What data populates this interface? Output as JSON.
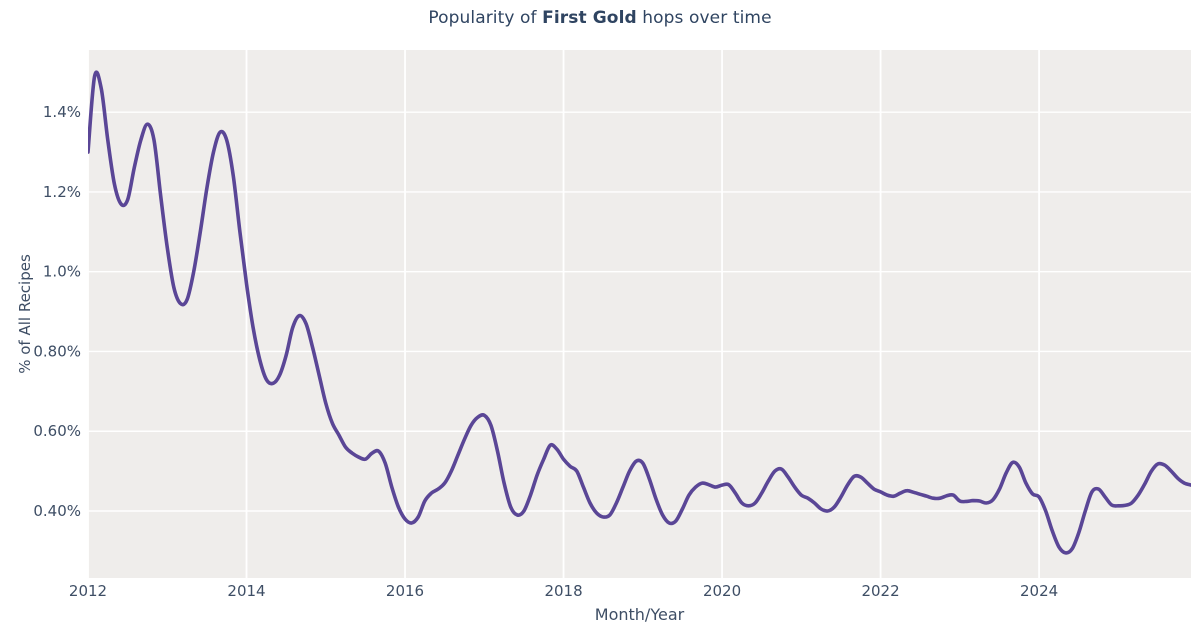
{
  "title": {
    "prefix": "Popularity of ",
    "hop": "First Gold",
    "suffix": " hops over time"
  },
  "colors": {
    "line": "#5a4696",
    "plot_bg": "#efedeb",
    "grid": "#ffffff",
    "title_text": "#2f4461",
    "tick_text": "#3e4e65"
  },
  "chart_data": {
    "type": "line",
    "title": "Popularity of First Gold hops over time",
    "xlabel": "Month/Year",
    "ylabel": "% of All Recipes",
    "grid": true,
    "legend": false,
    "frequency": "monthly",
    "x_start": "2012-01",
    "x_end": "2025-12",
    "unit": "% of all recipes",
    "xlim_years": [
      2012.0,
      2025.9167
    ],
    "ylim_percent": [
      0.232,
      1.556
    ],
    "x_ticks": [
      {
        "year": 2012,
        "label": "2012"
      },
      {
        "year": 2014,
        "label": "2014"
      },
      {
        "year": 2016,
        "label": "2016"
      },
      {
        "year": 2018,
        "label": "2018"
      },
      {
        "year": 2020,
        "label": "2020"
      },
      {
        "year": 2022,
        "label": "2022"
      },
      {
        "year": 2024,
        "label": "2024"
      }
    ],
    "y_ticks": [
      {
        "value": 0.4,
        "label": "0.40%"
      },
      {
        "value": 0.6,
        "label": "0.60%"
      },
      {
        "value": 0.8,
        "label": "0.80%"
      },
      {
        "value": 1.0,
        "label": "1.0%"
      },
      {
        "value": 1.2,
        "label": "1.2%"
      },
      {
        "value": 1.4,
        "label": "1.4%"
      }
    ],
    "series": [
      {
        "name": "First Gold",
        "values_percent": [
          1.3,
          1.49,
          1.46,
          1.33,
          1.22,
          1.17,
          1.18,
          1.26,
          1.33,
          1.37,
          1.33,
          1.19,
          1.06,
          0.96,
          0.92,
          0.93,
          1.0,
          1.1,
          1.21,
          1.3,
          1.35,
          1.33,
          1.24,
          1.1,
          0.97,
          0.86,
          0.78,
          0.73,
          0.72,
          0.74,
          0.79,
          0.86,
          0.89,
          0.87,
          0.81,
          0.74,
          0.67,
          0.62,
          0.59,
          0.56,
          0.545,
          0.535,
          0.53,
          0.545,
          0.55,
          0.52,
          0.46,
          0.41,
          0.38,
          0.37,
          0.385,
          0.425,
          0.445,
          0.455,
          0.47,
          0.5,
          0.54,
          0.58,
          0.615,
          0.635,
          0.64,
          0.615,
          0.55,
          0.47,
          0.41,
          0.39,
          0.4,
          0.44,
          0.49,
          0.53,
          0.565,
          0.555,
          0.53,
          0.512,
          0.5,
          0.46,
          0.42,
          0.395,
          0.385,
          0.39,
          0.42,
          0.46,
          0.5,
          0.525,
          0.52,
          0.48,
          0.43,
          0.39,
          0.37,
          0.375,
          0.405,
          0.44,
          0.46,
          0.47,
          0.466,
          0.46,
          0.465,
          0.466,
          0.445,
          0.42,
          0.413,
          0.42,
          0.445,
          0.475,
          0.5,
          0.505,
          0.485,
          0.46,
          0.44,
          0.432,
          0.42,
          0.405,
          0.4,
          0.41,
          0.435,
          0.465,
          0.487,
          0.485,
          0.47,
          0.455,
          0.448,
          0.44,
          0.437,
          0.445,
          0.451,
          0.447,
          0.442,
          0.437,
          0.432,
          0.432,
          0.438,
          0.44,
          0.425,
          0.424,
          0.426,
          0.425,
          0.42,
          0.428,
          0.455,
          0.495,
          0.522,
          0.51,
          0.47,
          0.443,
          0.435,
          0.4,
          0.35,
          0.31,
          0.295,
          0.305,
          0.345,
          0.4,
          0.448,
          0.455,
          0.435,
          0.415,
          0.413,
          0.414,
          0.42,
          0.44,
          0.468,
          0.5,
          0.518,
          0.515,
          0.5,
          0.482,
          0.47,
          0.465
        ]
      }
    ]
  }
}
